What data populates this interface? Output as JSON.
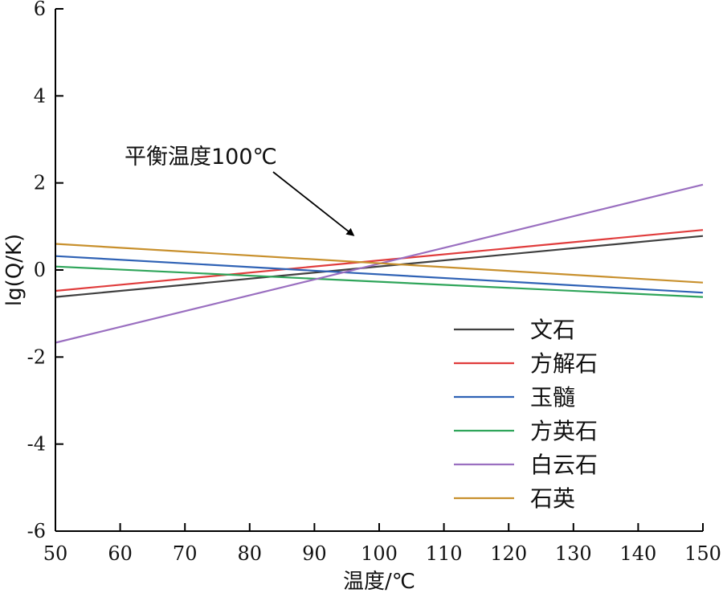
{
  "chart_data": {
    "type": "line",
    "xlabel": "温度/℃",
    "ylabel": "lg(Q/K)",
    "xlim": [
      50,
      150
    ],
    "ylim": [
      -6,
      6
    ],
    "xticks": [
      50,
      60,
      70,
      80,
      90,
      100,
      110,
      120,
      130,
      140,
      150
    ],
    "yticks": [
      -6,
      -4,
      -2,
      0,
      2,
      4,
      6
    ],
    "grid": false,
    "legend_position": "bottom-right",
    "annotation": {
      "text": "平衡温度100℃",
      "points_to": {
        "x": 96,
        "y": 0.8
      }
    },
    "series": [
      {
        "name": "文石",
        "color": "#404040",
        "x": [
          50,
          150
        ],
        "y": [
          -0.62,
          0.78
        ]
      },
      {
        "name": "方解石",
        "color": "#e03c3c",
        "x": [
          50,
          150
        ],
        "y": [
          -0.48,
          0.92
        ]
      },
      {
        "name": "玉髓",
        "color": "#2f62b5",
        "x": [
          50,
          150
        ],
        "y": [
          0.32,
          -0.52
        ]
      },
      {
        "name": "方英石",
        "color": "#2fa55a",
        "x": [
          50,
          150
        ],
        "y": [
          0.08,
          -0.62
        ]
      },
      {
        "name": "白云石",
        "color": "#9a6fc0",
        "x": [
          50,
          150
        ],
        "y": [
          -1.67,
          1.96
        ]
      },
      {
        "name": "石英",
        "color": "#c8902d",
        "x": [
          50,
          150
        ],
        "y": [
          0.6,
          -0.29
        ]
      }
    ]
  }
}
